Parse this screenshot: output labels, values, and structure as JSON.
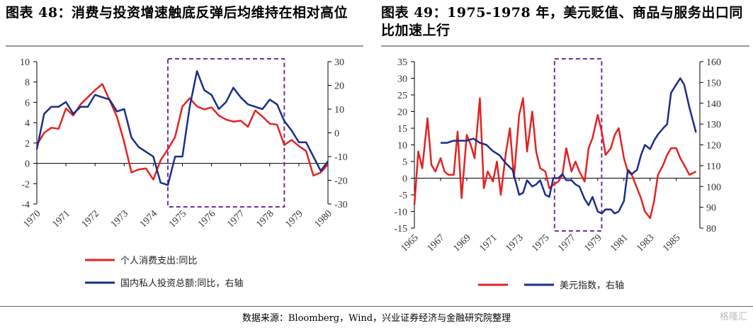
{
  "titles": {
    "left": "图表 48：消费与投资增速触底反弹后均维持在相对高位",
    "right": "图表 49：1975-1978 年，美元贬值、商品与服务出口同比加速上行"
  },
  "source": "数据来源：Bloomberg，Wind，兴业证券经济与金融研究院整理",
  "watermark": "格隆汇",
  "colors": {
    "red": "#e32322",
    "blue": "#1a2d8c",
    "box": "#7030a0",
    "grid": "#000000"
  },
  "chart_data": [
    {
      "type": "line",
      "title": "",
      "x_range": [
        1970,
        1980
      ],
      "x_ticks": [
        "1970",
        "1971",
        "1972",
        "1973",
        "1974",
        "1975",
        "1976",
        "1977",
        "1978",
        "1979",
        "1980"
      ],
      "y_left": {
        "range": [
          -4,
          10
        ],
        "ticks": [
          "-4",
          "-2",
          "0",
          "2",
          "4",
          "6",
          "8",
          "10"
        ]
      },
      "y_right": {
        "range": [
          -30,
          30
        ],
        "ticks": [
          "-30",
          "-20",
          "-10",
          "0",
          "10",
          "20",
          "30"
        ]
      },
      "highlight_range": [
        1974.5,
        1978.5
      ],
      "series": [
        {
          "name": "个人消费支出:同比",
          "axis": "left",
          "color": "#e32322",
          "x": [
            1970,
            1970.25,
            1970.5,
            1970.75,
            1971,
            1971.25,
            1971.5,
            1971.75,
            1972,
            1972.25,
            1972.5,
            1972.75,
            1973,
            1973.25,
            1973.5,
            1973.75,
            1974,
            1974.25,
            1974.5,
            1974.75,
            1975,
            1975.25,
            1975.5,
            1975.75,
            1976,
            1976.25,
            1976.5,
            1976.75,
            1977,
            1977.25,
            1977.5,
            1977.75,
            1978,
            1978.25,
            1978.5,
            1978.75,
            1979,
            1979.25,
            1979.5,
            1979.75,
            1980
          ],
          "y": [
            1.8,
            3.0,
            3.5,
            3.4,
            5.4,
            4.7,
            5.8,
            6.5,
            7.2,
            7.8,
            6.2,
            4.6,
            2.1,
            -0.9,
            -0.6,
            -0.5,
            -1.6,
            0.3,
            1.4,
            2.6,
            5.6,
            6.4,
            5.6,
            5.3,
            5.5,
            4.7,
            4.3,
            4.1,
            4.2,
            3.6,
            5.2,
            4.6,
            3.9,
            3.8,
            1.8,
            2.3,
            1.7,
            1.2,
            -1.2,
            -0.9,
            -0.1
          ]
        },
        {
          "name": "国内私人投资总额:同比，右轴",
          "axis": "right",
          "color": "#1a2d8c",
          "x": [
            1970,
            1970.25,
            1970.5,
            1970.75,
            1971,
            1971.25,
            1971.5,
            1971.75,
            1972,
            1972.25,
            1972.5,
            1972.75,
            1973,
            1973.25,
            1973.5,
            1973.75,
            1974,
            1974.25,
            1974.5,
            1974.75,
            1975,
            1975.25,
            1975.5,
            1975.75,
            1976,
            1976.25,
            1976.5,
            1976.75,
            1977,
            1977.25,
            1977.5,
            1977.75,
            1978,
            1978.25,
            1978.5,
            1978.75,
            1979,
            1979.25,
            1979.5,
            1979.75,
            1980
          ],
          "y": [
            -7,
            8,
            11,
            11,
            13,
            8,
            11,
            11,
            16,
            15,
            14,
            9,
            10,
            -2,
            -6,
            -8,
            -10,
            -21,
            -22,
            -10,
            -10,
            11,
            26,
            18,
            16,
            10,
            13,
            19,
            15,
            12,
            11,
            10,
            14,
            12,
            5,
            1,
            -4,
            -4,
            -10,
            -16,
            -12
          ]
        }
      ],
      "legend": [
        "个人消费支出:同比",
        "国内私人投资总额:同比，右轴"
      ]
    },
    {
      "type": "line",
      "title": "",
      "x_range": [
        1965,
        1986.8
      ],
      "x_ticks": [
        "1965",
        "1967",
        "1969",
        "1971",
        "1973",
        "1975",
        "1977",
        "1979",
        "1981",
        "1983",
        "1985"
      ],
      "y_left": {
        "range": [
          -15,
          35
        ],
        "ticks": [
          "-15",
          "-10",
          "-5",
          "0",
          "5",
          "10",
          "15",
          "20",
          "25",
          "30",
          "35"
        ]
      },
      "y_right": {
        "range": [
          80,
          160
        ],
        "ticks": [
          "80",
          "90",
          "100",
          "110",
          "120",
          "130",
          "140",
          "150",
          "160"
        ]
      },
      "highlight_range": [
        1975.7,
        1979.3
      ],
      "series": [
        {
          "name": "",
          "axis": "left",
          "color": "#e32322",
          "x": [
            1965,
            1965.3,
            1965.6,
            1966,
            1966.3,
            1966.6,
            1967,
            1967.3,
            1967.6,
            1968,
            1968.3,
            1968.6,
            1969,
            1969.3,
            1969.6,
            1970,
            1970.3,
            1970.6,
            1971,
            1971.3,
            1971.6,
            1972,
            1972.3,
            1972.6,
            1973,
            1973.3,
            1973.6,
            1974,
            1974.3,
            1974.6,
            1975,
            1975.3,
            1975.6,
            1976,
            1976.3,
            1976.6,
            1977,
            1977.3,
            1977.6,
            1978,
            1978.3,
            1978.6,
            1979,
            1979.3,
            1979.6,
            1980,
            1980.3,
            1980.6,
            1981,
            1981.3,
            1981.6,
            1982,
            1982.3,
            1982.6,
            1983,
            1983.3,
            1983.6,
            1984,
            1984.3,
            1984.6,
            1985,
            1985.3,
            1985.6,
            1986,
            1986.5
          ],
          "y": [
            -8,
            8,
            3,
            18,
            4,
            2,
            6,
            2,
            1,
            1,
            14,
            -6,
            13,
            10,
            6,
            24,
            -3,
            2,
            -1,
            5,
            -5,
            8,
            15,
            0,
            19,
            24,
            8,
            20,
            8,
            3,
            2,
            -3,
            -2,
            -1,
            1,
            9,
            2,
            5,
            2,
            -1,
            9,
            12,
            19,
            14,
            7,
            9,
            13,
            15,
            6,
            2,
            1,
            -3,
            -6,
            -10,
            -12,
            -7,
            1,
            4,
            7,
            9,
            9,
            6,
            4,
            1,
            2
          ]
        },
        {
          "name": "美元指数，右轴",
          "axis": "right",
          "color": "#1a2d8c",
          "x": [
            1967,
            1967.5,
            1968,
            1968.5,
            1969,
            1969.5,
            1970,
            1970.5,
            1971,
            1971.5,
            1972,
            1972.5,
            1973,
            1973.3,
            1973.6,
            1974,
            1974.3,
            1974.6,
            1975,
            1975.3,
            1975.6,
            1976,
            1976.3,
            1976.6,
            1977,
            1977.3,
            1977.6,
            1978,
            1978.3,
            1978.6,
            1979,
            1979.3,
            1979.6,
            1980,
            1980.3,
            1980.6,
            1981,
            1981.3,
            1981.6,
            1982,
            1982.3,
            1982.6,
            1983,
            1983.3,
            1983.6,
            1984,
            1984.3,
            1984.6,
            1985,
            1985.3,
            1985.6,
            1986,
            1986.5
          ],
          "y": [
            121,
            121,
            122,
            122,
            122,
            123,
            121,
            120,
            117,
            115,
            111,
            108,
            96,
            97,
            103,
            100,
            101,
            103,
            96,
            95,
            104,
            104,
            106,
            103,
            103,
            101,
            100,
            94,
            91,
            95,
            88,
            87,
            89,
            89,
            87,
            88,
            93,
            108,
            106,
            108,
            115,
            120,
            118,
            122,
            125,
            128,
            130,
            145,
            149,
            152,
            149,
            138,
            126
          ]
        }
      ],
      "legend": [
        "",
        "美元指数，右轴"
      ]
    }
  ]
}
